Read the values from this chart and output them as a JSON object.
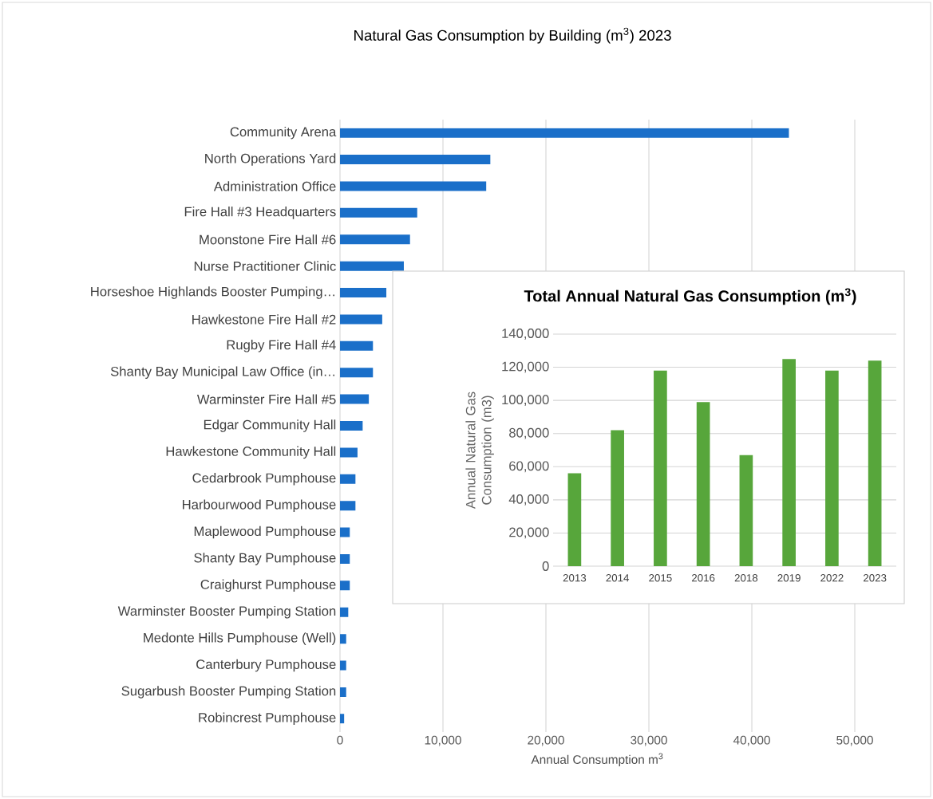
{
  "chart_data": [
    {
      "type": "bar",
      "orientation": "horizontal",
      "title": "Natural Gas Consumption by Building (m$^{3}$) 2023",
      "xlabel": "Annual Consumption m$^{3}$",
      "categories": [
        "Community Arena",
        "North Operations Yard",
        "Administration Office",
        "Fire Hall #3 Headquarters",
        "Moonstone Fire Hall #6",
        "Nurse Practitioner Clinic",
        "Horseshoe Highlands Booster Pumping…",
        "Hawkestone Fire Hall #2",
        "Rugby Fire Hall #4",
        "Shanty Bay Municipal Law Office (in…",
        "Warminster Fire Hall #5",
        "Edgar Community Hall",
        "Hawkestone Community Hall",
        "Cedarbrook Pumphouse",
        "Harbourwood Pumphouse",
        "Maplewood Pumphouse",
        "Shanty Bay Pumphouse",
        "Craighurst Pumphouse",
        "Warminster Booster Pumping Station",
        "Medonte Hills Pumphouse (Well)",
        "Canterbury Pumphouse",
        "Sugarbush Booster Pumping Station",
        "Robincrest Pumphouse"
      ],
      "values": [
        43600,
        14600,
        14200,
        7500,
        6800,
        6200,
        4500,
        4100,
        3200,
        3200,
        2800,
        2200,
        1700,
        1500,
        1500,
        950,
        950,
        950,
        800,
        600,
        600,
        600,
        400
      ],
      "color": "#1a6fc9",
      "xlim": [
        0,
        50000
      ],
      "xticks": [
        0,
        {
          "value": 10000,
          "label": "10,000"
        },
        {
          "value": 20000,
          "label": "20,000"
        },
        {
          "value": 30000,
          "label": "30,000"
        },
        {
          "value": 40000,
          "label": "40,000"
        },
        {
          "value": 50000,
          "label": "50,000"
        }
      ],
      "grid": "x"
    },
    {
      "type": "bar",
      "title": "Total Annual Natural Gas Consumption (m$^{3}$)",
      "ylabel": "Annual Natural Gas Consumption (m3)",
      "categories": [
        "2013",
        "2014",
        "2015",
        "2016",
        "2018",
        "2019",
        "2022",
        "2023"
      ],
      "values": [
        56000,
        82000,
        118000,
        99000,
        67000,
        125000,
        118000,
        124000
      ],
      "color": "#57a63b",
      "ylim": [
        0,
        140000
      ],
      "yticks": [
        0,
        {
          "value": 20000,
          "label": "20,000"
        },
        {
          "value": 40000,
          "label": "40,000"
        },
        {
          "value": 60000,
          "label": "60,000"
        },
        {
          "value": 80000,
          "label": "80,000"
        },
        {
          "value": 100000,
          "label": "100,000"
        },
        {
          "value": 120000,
          "label": "120,000"
        },
        {
          "value": 140000,
          "label": "140,000"
        }
      ],
      "grid": "y"
    }
  ]
}
